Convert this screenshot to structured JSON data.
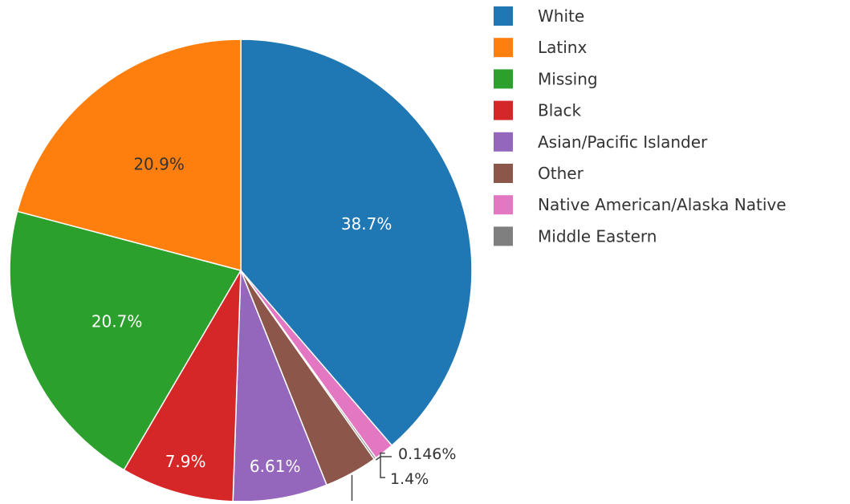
{
  "chart_data": {
    "type": "pie",
    "direction": "clockwise",
    "start": "12 o'clock",
    "legend_position": "right",
    "slices": [
      {
        "label": "White",
        "value": 38.7,
        "display": "38.7%",
        "color": "#1f77b4",
        "text_color": "#ffffff",
        "text_position": "inside"
      },
      {
        "label": "Native American/Alaska Native",
        "value": 1.4,
        "display": "1.4%",
        "color": "#e377c2",
        "text_color": "#333333",
        "text_position": "outside"
      },
      {
        "label": "Middle Eastern",
        "value": 0.146,
        "display": "0.146%",
        "color": "#7f7f7f",
        "text_color": "#333333",
        "text_position": "outside"
      },
      {
        "label": "Other",
        "value": 3.73,
        "display": "",
        "color": "#8c564b",
        "text_color": "#ffffff",
        "text_position": "outside"
      },
      {
        "label": "Asian/Pacific Islander",
        "value": 6.61,
        "display": "6.61%",
        "color": "#9467bd",
        "text_color": "#ffffff",
        "text_position": "inside"
      },
      {
        "label": "Black",
        "value": 7.9,
        "display": "7.9%",
        "color": "#d62728",
        "text_color": "#ffffff",
        "text_position": "inside"
      },
      {
        "label": "Missing",
        "value": 20.7,
        "display": "20.7%",
        "color": "#2ca02c",
        "text_color": "#ffffff",
        "text_position": "inside"
      },
      {
        "label": "Latinx",
        "value": 20.9,
        "display": "20.9%",
        "color": "#ff7f0e",
        "text_color": "#333333",
        "text_position": "inside"
      }
    ],
    "legend": [
      {
        "label": "White",
        "color": "#1f77b4"
      },
      {
        "label": "Latinx",
        "color": "#ff7f0e"
      },
      {
        "label": "Missing",
        "color": "#2ca02c"
      },
      {
        "label": "Black",
        "color": "#d62728"
      },
      {
        "label": "Asian/Pacific Islander",
        "color": "#9467bd"
      },
      {
        "label": "Other",
        "color": "#8c564b"
      },
      {
        "label": "Native American/Alaska Native",
        "color": "#e377c2"
      },
      {
        "label": "Middle Eastern",
        "color": "#7f7f7f"
      }
    ]
  }
}
